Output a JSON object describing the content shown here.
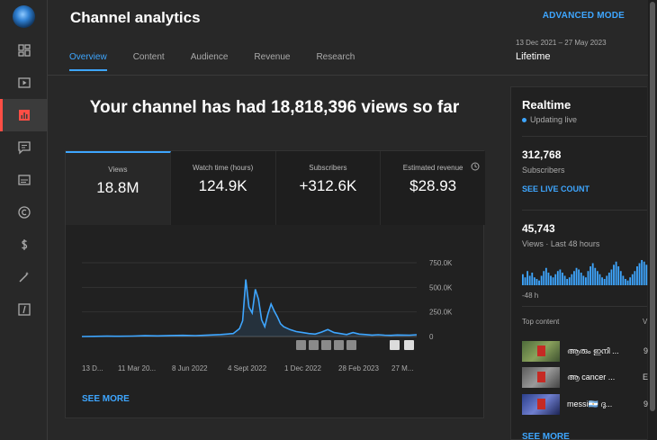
{
  "header": {
    "title": "Channel analytics",
    "advanced_mode": "ADVANCED MODE",
    "date_range": "13 Dec 2021 – 27 May 2023",
    "period": "Lifetime"
  },
  "tabs": [
    {
      "label": "Overview",
      "active": true
    },
    {
      "label": "Content",
      "active": false
    },
    {
      "label": "Audience",
      "active": false
    },
    {
      "label": "Revenue",
      "active": false
    },
    {
      "label": "Research",
      "active": false
    }
  ],
  "sidebar": {
    "items": [
      {
        "icon": "dashboard-icon"
      },
      {
        "icon": "content-icon"
      },
      {
        "icon": "analytics-icon",
        "active": true
      },
      {
        "icon": "comments-icon"
      },
      {
        "icon": "subtitles-icon"
      },
      {
        "icon": "copyright-icon"
      },
      {
        "icon": "earn-icon"
      },
      {
        "icon": "customization-icon"
      },
      {
        "icon": "audio-library-icon"
      }
    ]
  },
  "headline": "Your channel has had 18,818,396 views so far",
  "metrics": [
    {
      "label": "Views",
      "value": "18.8M"
    },
    {
      "label": "Watch time (hours)",
      "value": "124.9K"
    },
    {
      "label": "Subscribers",
      "value": "+312.6K"
    },
    {
      "label": "Estimated revenue",
      "value": "$28.93"
    }
  ],
  "see_more": "SEE MORE",
  "chart_data": {
    "type": "line",
    "x_tick_labels": [
      "13 D...",
      "11 Mar 20...",
      "8 Jun 2022",
      "4 Sept 2022",
      "1 Dec 2022",
      "28 Feb 2023",
      "27 M..."
    ],
    "y_tick_labels": [
      "750.0K",
      "500.0K",
      "250.0K",
      "0"
    ],
    "ylim": [
      0,
      750000
    ],
    "color": "#3ea6ff",
    "series": [
      {
        "x": [
          0,
          20,
          40,
          60,
          80,
          100,
          120,
          140,
          160,
          180,
          200,
          220,
          240,
          250,
          255,
          260,
          265,
          270,
          275,
          280,
          285,
          290,
          295,
          300,
          305,
          310,
          315,
          320,
          330,
          340,
          350,
          360,
          370,
          380,
          390,
          400,
          410,
          420,
          430,
          440,
          450,
          460,
          470,
          480,
          490,
          500,
          510,
          520,
          531
        ],
        "values": [
          0,
          2000,
          4000,
          3000,
          5000,
          8000,
          6000,
          10000,
          12000,
          9000,
          15000,
          20000,
          30000,
          80000,
          160000,
          580000,
          300000,
          240000,
          480000,
          380000,
          170000,
          100000,
          230000,
          330000,
          260000,
          200000,
          130000,
          100000,
          70000,
          50000,
          40000,
          30000,
          25000,
          45000,
          70000,
          40000,
          30000,
          20000,
          40000,
          25000,
          20000,
          15000,
          18000,
          14000,
          12000,
          16000,
          15000,
          14000,
          18000
        ]
      }
    ]
  },
  "realtime": {
    "title": "Realtime",
    "updating": "Updating live",
    "subscribers_value": "312,768",
    "subscribers_label": "Subscribers",
    "see_live_count": "SEE LIVE COUNT",
    "views_value": "45,743",
    "views_label": "Views · Last 48 hours",
    "axis_label": "-48 h",
    "top_content_label": "Top content",
    "top_content_header_v": "V",
    "top_content": [
      {
        "title": "ആരും ഇനി ...",
        "value": "9"
      },
      {
        "title": "ആ cancer ...",
        "value": "E"
      },
      {
        "title": "messi🇦🇷 ദു...",
        "value": "9"
      }
    ],
    "see_more": "SEE MORE",
    "bars": [
      7,
      5,
      9,
      6,
      8,
      5,
      4,
      3,
      6,
      9,
      11,
      8,
      6,
      5,
      7,
      9,
      10,
      8,
      6,
      4,
      5,
      7,
      9,
      11,
      10,
      8,
      6,
      5,
      9,
      12,
      14,
      11,
      9,
      7,
      5,
      4,
      6,
      8,
      10,
      13,
      15,
      12,
      9,
      6,
      4,
      3,
      5,
      7,
      9,
      12,
      14,
      16,
      15,
      13
    ]
  }
}
